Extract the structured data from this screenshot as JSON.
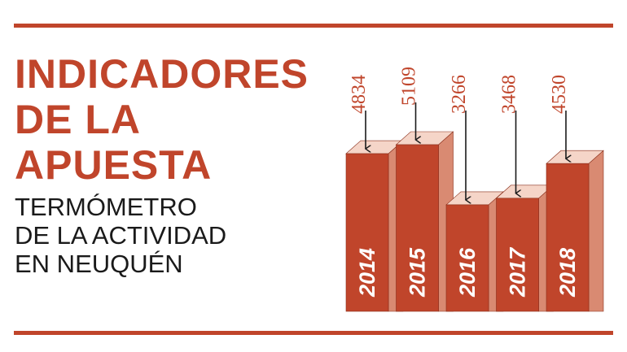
{
  "chart_data": {
    "type": "bar3d",
    "title": [
      "INDICADORES",
      "DE LA",
      "APUESTA"
    ],
    "subtitle": [
      "TERMÓMETRO",
      "DE LA ACTIVIDAD",
      "EN NEUQUÉN"
    ],
    "categories": [
      "2014",
      "2015",
      "2016",
      "2017",
      "2018"
    ],
    "values": [
      4834,
      5109,
      3266,
      3468,
      4530
    ],
    "color": "#c0452b"
  }
}
